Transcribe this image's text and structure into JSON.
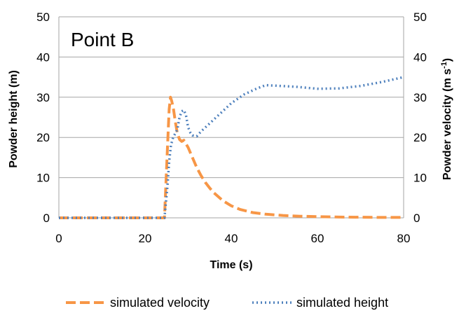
{
  "chart_data": {
    "type": "line",
    "annotation": "Point B",
    "xlabel": "Time (s)",
    "ylabel_left": "Powder height (m)",
    "ylabel_right_main": "Powder velocity (m s",
    "ylabel_right_sup": "-1",
    "ylabel_right_close": ")",
    "xlim": [
      0,
      80
    ],
    "ylim_left": [
      0,
      50
    ],
    "ylim_right": [
      0,
      50
    ],
    "x_ticks": [
      "0",
      "20",
      "40",
      "60",
      "80"
    ],
    "y_ticks_left": [
      "0",
      "10",
      "20",
      "30",
      "40",
      "50"
    ],
    "y_ticks_right": [
      "0",
      "10",
      "20",
      "30",
      "40",
      "50"
    ],
    "grid": true,
    "legend_position": "bottom",
    "series": [
      {
        "name": "simulated velocity",
        "color": "#F79646",
        "style": "dashed",
        "x": [
          0,
          24.5,
          25.3,
          25.6,
          25.9,
          26.2,
          26.6,
          27.0,
          27.5,
          28.0,
          28.5,
          29.0,
          30.0,
          31.0,
          32.0,
          33.0,
          34.0,
          35.0,
          36.0,
          38.0,
          40.0,
          42.0,
          45.0,
          48.0,
          52.0,
          56.0,
          60.0,
          65.0,
          70.0,
          75.0,
          80.0
        ],
        "y": [
          0,
          0,
          20,
          27,
          30,
          29,
          27,
          24,
          21,
          19.5,
          19,
          19.3,
          17.5,
          15,
          12.5,
          10.5,
          8.8,
          7.4,
          6.2,
          4.3,
          3.0,
          2.1,
          1.3,
          0.9,
          0.6,
          0.4,
          0.3,
          0.2,
          0.15,
          0.1,
          0.1
        ]
      },
      {
        "name": "simulated height",
        "color": "#4F81BD",
        "style": "dotted",
        "x": [
          0,
          24.5,
          25.2,
          25.6,
          26.0,
          26.5,
          27.0,
          27.5,
          28.0,
          28.5,
          29.0,
          29.5,
          30.0,
          30.5,
          31.0,
          32.0,
          33.0,
          35.0,
          37.0,
          40.0,
          43.0,
          46.0,
          48.0,
          50.0,
          55.0,
          60.0,
          65.0,
          70.0,
          75.0,
          80.0
        ],
        "y": [
          0,
          0,
          8,
          14,
          18,
          20,
          21,
          22,
          25,
          26.5,
          26.8,
          25.5,
          22.5,
          21.2,
          20.5,
          20.3,
          21.5,
          23.5,
          25.5,
          28.5,
          30.7,
          32.2,
          33,
          32.9,
          32.6,
          32.1,
          32.2,
          32.8,
          33.8,
          35
        ]
      }
    ]
  }
}
